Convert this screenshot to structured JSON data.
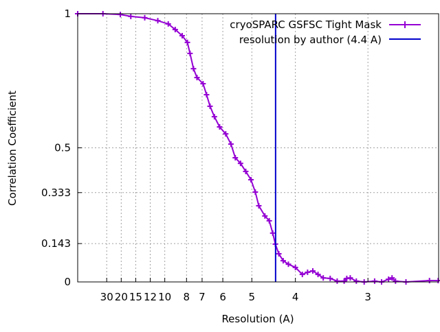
{
  "chart_data": {
    "type": "line",
    "title": "",
    "xlabel": "Resolution (A)",
    "ylabel": "Correlation Coefficient",
    "x_units": "1/A (spatial frequency)",
    "xlim": [
      0,
      0.4145
    ],
    "ylim": [
      0,
      1
    ],
    "grid": true,
    "legend_position": "top-right",
    "x_ticks": [
      {
        "label": "30",
        "value": 30
      },
      {
        "label": "20",
        "value": 20
      },
      {
        "label": "15",
        "value": 15
      },
      {
        "label": "12",
        "value": 12
      },
      {
        "label": "10",
        "value": 10
      },
      {
        "label": "8",
        "value": 8
      },
      {
        "label": "7",
        "value": 7
      },
      {
        "label": "6",
        "value": 6
      },
      {
        "label": "5",
        "value": 5
      },
      {
        "label": "4",
        "value": 4
      },
      {
        "label": "3",
        "value": 3
      }
    ],
    "y_ticks": [
      {
        "label": "0",
        "value": 0
      },
      {
        "label": "0.143",
        "value": 0.143
      },
      {
        "label": "0.333",
        "value": 0.333
      },
      {
        "label": "0.5",
        "value": 0.5
      },
      {
        "label": "1",
        "value": 1
      }
    ],
    "series": [
      {
        "name": "cryoSPARC GSFSC Tight Mask",
        "color": "#9400d3",
        "x": [
          0,
          0.029,
          0.049,
          0.061,
          0.077,
          0.092,
          0.104,
          0.112,
          0.12,
          0.126,
          0.129,
          0.133,
          0.137,
          0.144,
          0.148,
          0.152,
          0.157,
          0.163,
          0.17,
          0.176,
          0.181,
          0.187,
          0.193,
          0.199,
          0.204,
          0.208,
          0.215,
          0.22,
          0.224,
          0.227,
          0.231,
          0.236,
          0.242,
          0.25,
          0.258,
          0.264,
          0.27,
          0.276,
          0.282,
          0.29,
          0.298,
          0.306,
          0.309,
          0.313,
          0.32,
          0.329,
          0.341,
          0.349,
          0.357,
          0.361,
          0.365,
          0.377,
          0.404,
          0.414
        ],
        "y": [
          1,
          1,
          0.997,
          0.99,
          0.985,
          0.974,
          0.962,
          0.941,
          0.918,
          0.893,
          0.852,
          0.795,
          0.762,
          0.739,
          0.698,
          0.655,
          0.616,
          0.578,
          0.552,
          0.514,
          0.463,
          0.442,
          0.412,
          0.381,
          0.335,
          0.284,
          0.246,
          0.228,
          0.182,
          0.141,
          0.105,
          0.079,
          0.066,
          0.054,
          0.028,
          0.036,
          0.041,
          0.028,
          0.015,
          0.013,
          0.003,
          0.003,
          0.013,
          0.015,
          0.003,
          0,
          0.003,
          0,
          0.01,
          0.015,
          0.003,
          0,
          0.005,
          0.005
        ]
      },
      {
        "name": "resolution by author (4.4 A)",
        "color": "#0000cd",
        "vertical_line_at_resolution": 4.4
      }
    ]
  }
}
